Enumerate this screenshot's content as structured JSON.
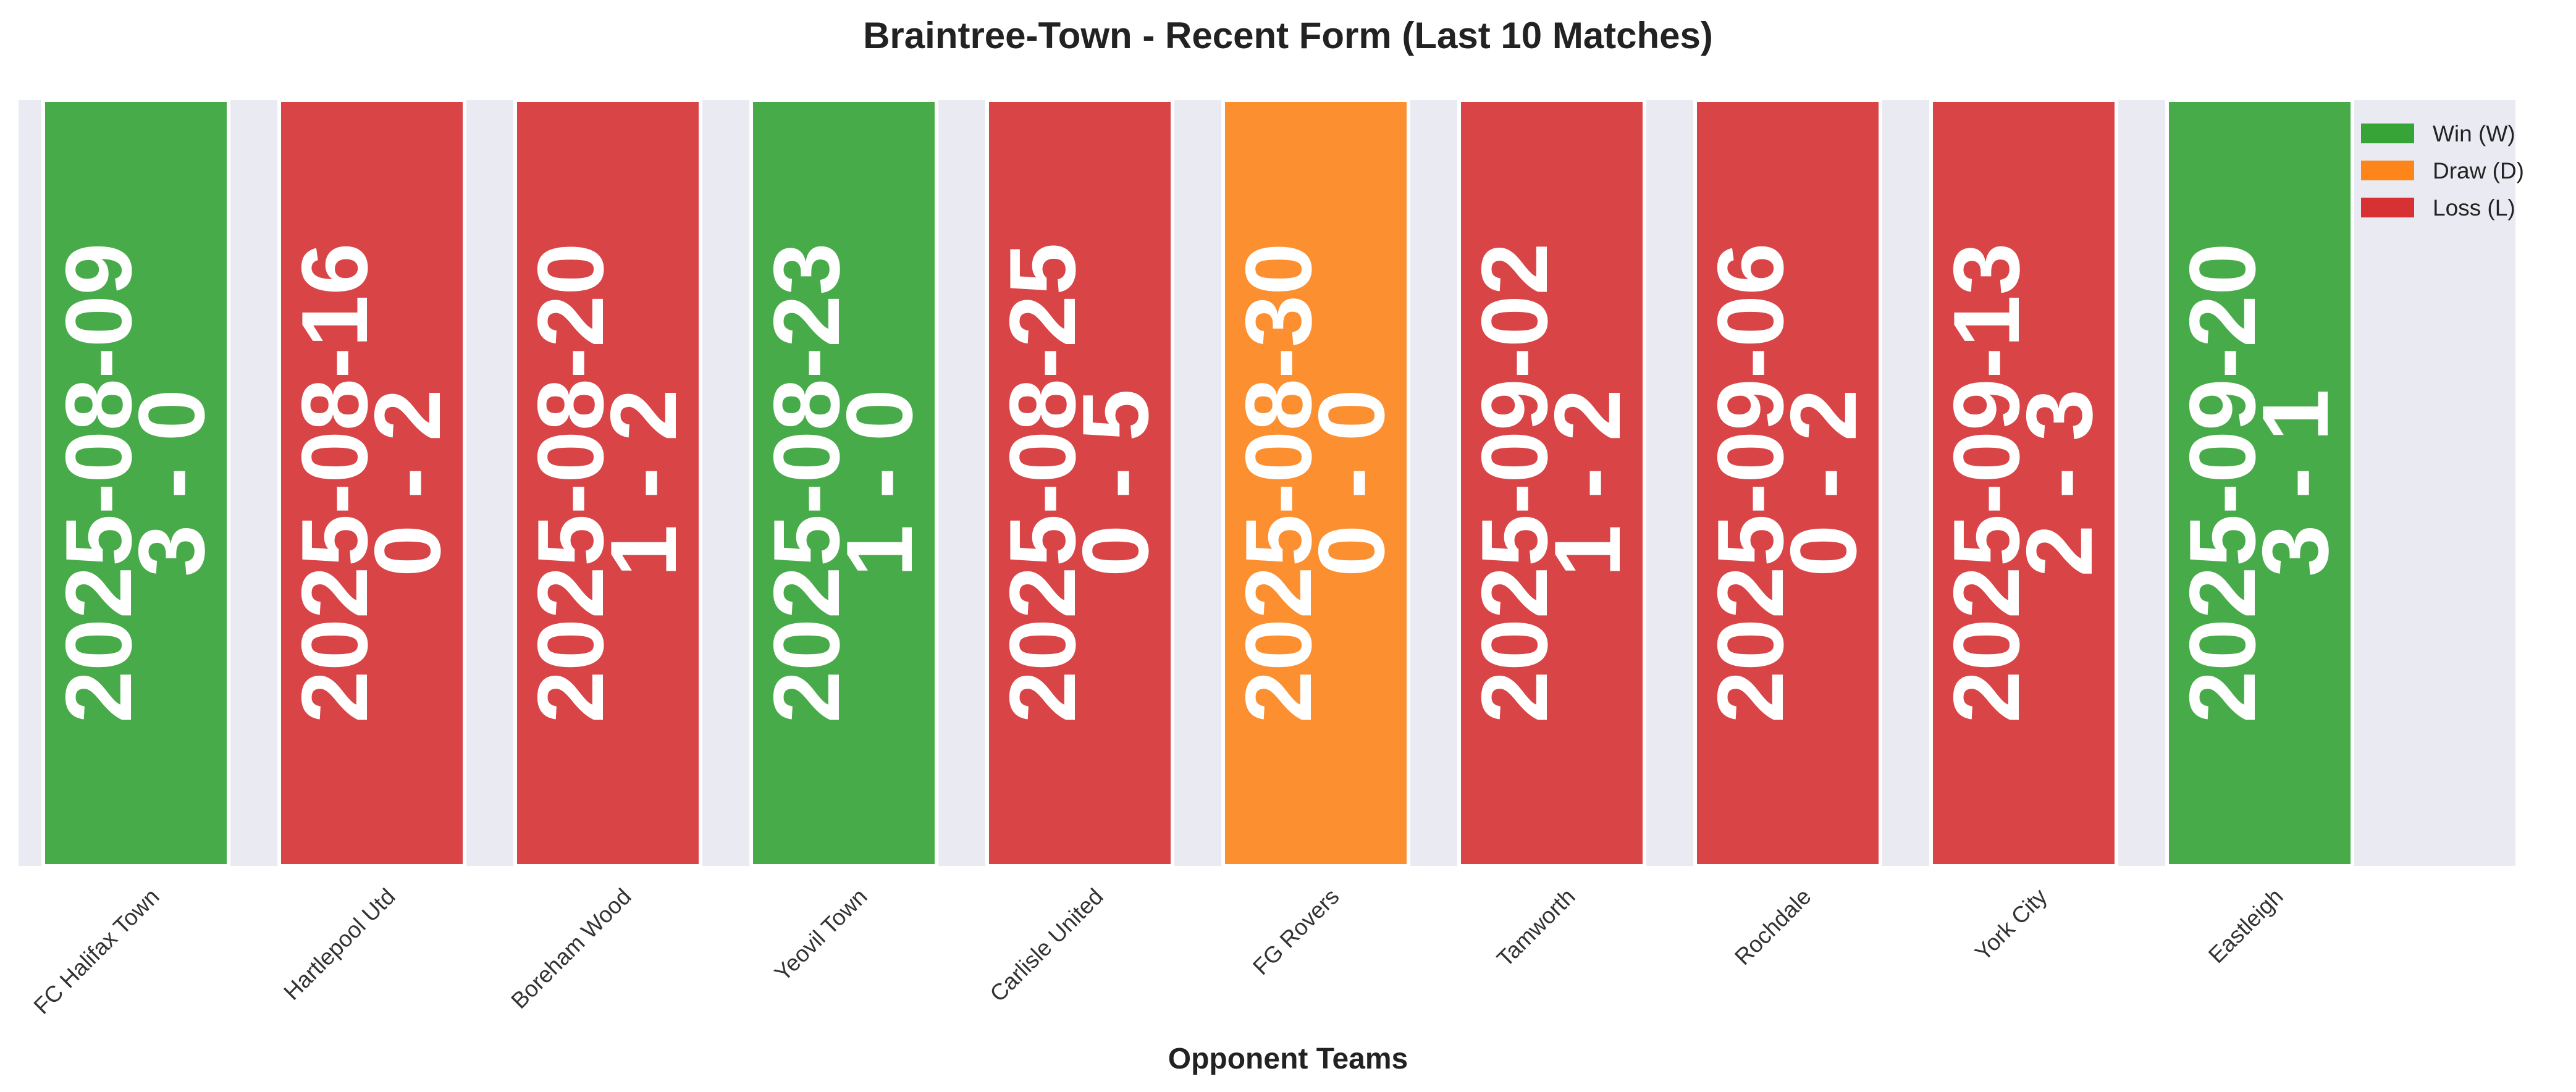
{
  "chart_data": {
    "type": "bar",
    "title": "Braintree-Town - Recent Form (Last 10 Matches)",
    "xlabel": "Opponent Teams",
    "ylabel": "",
    "grid": true,
    "legend_position": "top-right",
    "categories": [
      "FC Halifax Town",
      "Hartlepool Utd",
      "Boreham Wood",
      "Yeovil Town",
      "Carlisle United",
      "FG Rovers",
      "Tamworth",
      "Rochdale",
      "York City",
      "Eastleigh"
    ],
    "values": [
      1,
      1,
      1,
      1,
      1,
      1,
      1,
      1,
      1,
      1
    ],
    "matches": [
      {
        "opponent": "FC Halifax Town",
        "date": "2025-08-09",
        "score": "3 - 0",
        "result": "W"
      },
      {
        "opponent": "Hartlepool Utd",
        "date": "2025-08-16",
        "score": "0 - 2",
        "result": "L"
      },
      {
        "opponent": "Boreham Wood",
        "date": "2025-08-20",
        "score": "1 - 2",
        "result": "L"
      },
      {
        "opponent": "Yeovil Town",
        "date": "2025-08-23",
        "score": "1 - 0",
        "result": "W"
      },
      {
        "opponent": "Carlisle United",
        "date": "2025-08-25",
        "score": "0 - 5",
        "result": "L"
      },
      {
        "opponent": "FG Rovers",
        "date": "2025-08-30",
        "score": "0 - 0",
        "result": "D"
      },
      {
        "opponent": "Tamworth",
        "date": "2025-09-02",
        "score": "1 - 2",
        "result": "L"
      },
      {
        "opponent": "Rochdale",
        "date": "2025-09-06",
        "score": "0 - 2",
        "result": "L"
      },
      {
        "opponent": "York City",
        "date": "2025-09-13",
        "score": "2 - 3",
        "result": "L"
      },
      {
        "opponent": "Eastleigh",
        "date": "2025-09-20",
        "score": "3 - 1",
        "result": "W"
      }
    ],
    "legend": [
      {
        "key": "W",
        "label": "Win (W)",
        "color": "#2ca02c"
      },
      {
        "key": "D",
        "label": "Draw (D)",
        "color": "#ff7f0e"
      },
      {
        "key": "L",
        "label": "Loss (L)",
        "color": "#d62728"
      }
    ],
    "colors": {
      "W": "#2ca02c",
      "D": "#ff7f0e",
      "L": "#d62728",
      "plot_background": "#eaeaf2",
      "bar_edge": "#ffffff",
      "label_text": "#ffffff"
    }
  }
}
